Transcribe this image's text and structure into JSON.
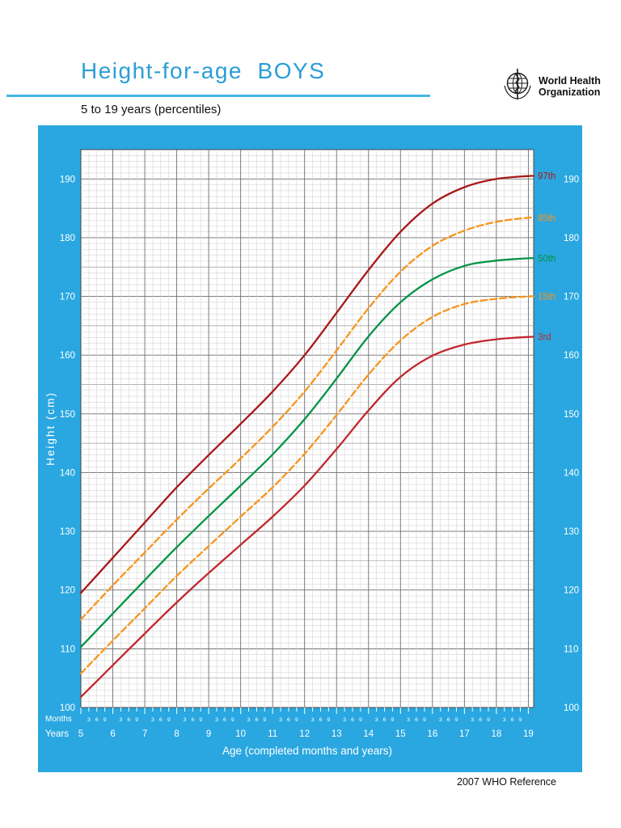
{
  "header": {
    "title": "Height-for-age  BOYS",
    "subtitle": "5 to 19 years (percentiles)",
    "who_logo_line1": "World Health",
    "who_logo_line2": "Organization"
  },
  "footer": {
    "reference": "2007 WHO Reference"
  },
  "chart_data": {
    "type": "line",
    "title": "Height-for-age BOYS",
    "subtitle": "5 to 19 years (percentiles)",
    "xlabel": "Age (completed months and years)",
    "ylabel": "Height (cm)",
    "x_axis": {
      "months_row_label": "Months",
      "years_row_label": "Years",
      "month_tick_labels": [
        "3",
        "6",
        "9"
      ],
      "years": [
        5,
        6,
        7,
        8,
        9,
        10,
        11,
        12,
        13,
        14,
        15,
        16,
        17,
        18,
        19
      ]
    },
    "y_axis": {
      "min": 100,
      "max": 195,
      "ticks": [
        100,
        110,
        120,
        130,
        140,
        150,
        160,
        170,
        180,
        190
      ]
    },
    "grid": true,
    "legend_position": "right-of-curves",
    "series": [
      {
        "name": "97th",
        "color": "#a81817",
        "dashed": false,
        "values": [
          119.5,
          125.5,
          131.5,
          137.5,
          143.0,
          148.3,
          153.8,
          160.0,
          167.2,
          174.5,
          181.0,
          185.8,
          188.6,
          190.0,
          190.5
        ]
      },
      {
        "name": "85th",
        "color": "#f7941d",
        "dashed": true,
        "values": [
          115.0,
          120.8,
          126.4,
          132.0,
          137.3,
          142.4,
          147.8,
          153.8,
          160.8,
          168.0,
          174.2,
          178.6,
          181.2,
          182.7,
          183.4
        ]
      },
      {
        "name": "50th",
        "color": "#009345",
        "dashed": false,
        "values": [
          110.3,
          116.0,
          121.7,
          127.3,
          132.6,
          137.8,
          143.1,
          149.1,
          156.0,
          163.2,
          169.0,
          172.9,
          175.2,
          176.1,
          176.5
        ]
      },
      {
        "name": "15th",
        "color": "#f7941d",
        "dashed": true,
        "values": [
          105.8,
          111.4,
          116.9,
          122.4,
          127.5,
          132.5,
          137.5,
          143.2,
          149.8,
          156.7,
          162.5,
          166.5,
          168.7,
          169.6,
          170.0
        ]
      },
      {
        "name": "3rd",
        "color": "#c1272d",
        "dashed": false,
        "values": [
          101.8,
          107.2,
          112.6,
          117.9,
          122.9,
          127.7,
          132.5,
          137.8,
          144.0,
          150.6,
          156.3,
          159.9,
          161.8,
          162.7,
          163.1
        ]
      }
    ],
    "source_note": "2007 WHO Reference",
    "colors": {
      "panel": "#2aa7e0",
      "title": "#2b9ed6",
      "rule": "#45b6e6",
      "grid_minor": "#cccccc",
      "grid_mid": "#9a9a9a",
      "grid_major": "#6e6e6e",
      "axis_text": "#ffffff",
      "plot_border": "#444444"
    }
  }
}
